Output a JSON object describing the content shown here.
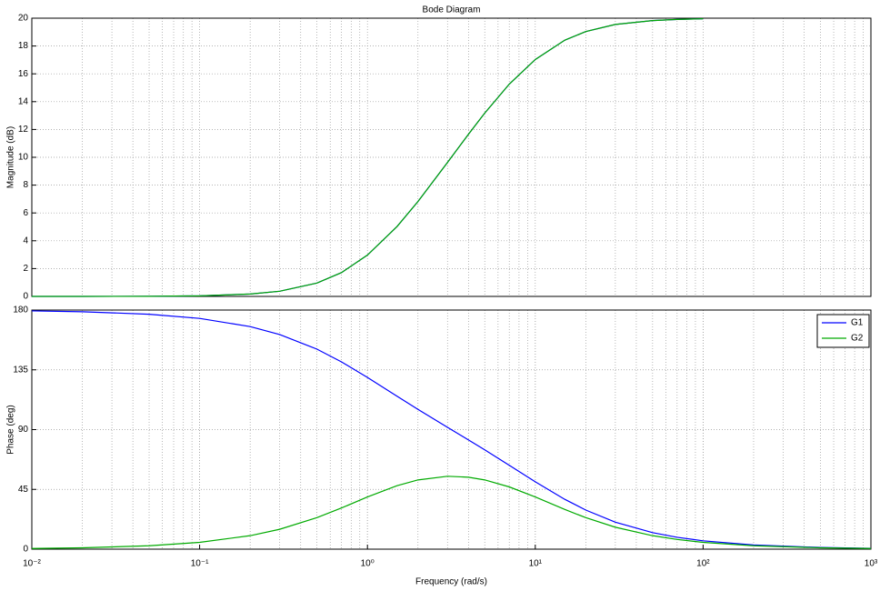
{
  "chart_data": [
    {
      "type": "line",
      "title": "Bode Diagram",
      "ylabel": "Magnitude (dB)",
      "x": [
        0.01,
        0.02,
        0.05,
        0.1,
        0.2,
        0.3,
        0.5,
        0.7,
        1,
        1.5,
        2,
        3,
        4,
        5,
        7,
        10,
        15,
        20,
        30,
        50,
        70,
        100
      ],
      "series": [
        {
          "color": "#0000ff",
          "values": [
            0,
            0,
            0.01,
            0.04,
            0.17,
            0.37,
            0.96,
            1.71,
            2.97,
            5.02,
            6.82,
            9.63,
            11.66,
            13.18,
            15.26,
            17.03,
            18.42,
            19.04,
            19.55,
            19.83,
            19.91,
            19.96
          ]
        },
        {
          "color": "#00aa00",
          "values": [
            0,
            0,
            0.01,
            0.04,
            0.17,
            0.37,
            0.96,
            1.71,
            2.97,
            5.02,
            6.82,
            9.63,
            11.66,
            13.18,
            15.26,
            17.03,
            18.42,
            19.04,
            19.55,
            19.83,
            19.91,
            19.96
          ]
        }
      ],
      "xscale": "log",
      "xlim": [
        0.01,
        1000
      ],
      "ylim": [
        0,
        20
      ],
      "yticks": [
        0,
        2,
        4,
        6,
        8,
        10,
        12,
        14,
        16,
        18,
        20
      ],
      "grid": true,
      "minor_grid": true
    },
    {
      "type": "line",
      "ylabel": "Phase (deg)",
      "xlabel": "Frequency  (rad/s)",
      "x": [
        0.01,
        0.02,
        0.05,
        0.1,
        0.2,
        0.3,
        0.5,
        0.7,
        1,
        1.5,
        2,
        3,
        4,
        5,
        7,
        10,
        15,
        20,
        30,
        50,
        70,
        100,
        200,
        500,
        1000
      ],
      "series": [
        {
          "name": "G1",
          "color": "#0000ff",
          "values": [
            179.37,
            178.74,
            176.85,
            173.72,
            167.54,
            161.58,
            150.57,
            141.01,
            129.29,
            115.16,
            105.26,
            91.73,
            82.24,
            74.74,
            63.14,
            50.71,
            37.5,
            29.43,
            20.34,
            12.46,
            8.95,
            6.28,
            3.15,
            1.26,
            0.63
          ]
        },
        {
          "name": "G2",
          "color": "#00aa00",
          "values": [
            0.52,
            1.03,
            2.58,
            5.14,
            10.16,
            14.98,
            23.71,
            30.99,
            39.29,
            47.78,
            52.12,
            54.87,
            54.16,
            52.12,
            46.88,
            39.29,
            29.88,
            23.71,
            16.52,
            10.16,
            7.31,
            5.14,
            2.57,
            1.03,
            0.51
          ]
        }
      ],
      "xscale": "log",
      "xlim": [
        0.01,
        1000
      ],
      "ylim": [
        0,
        180
      ],
      "xticks": [
        {
          "value": 0.01,
          "label": "10⁻²"
        },
        {
          "value": 0.1,
          "label": "10⁻¹"
        },
        {
          "value": 1,
          "label": "10⁰"
        },
        {
          "value": 10,
          "label": "10¹"
        },
        {
          "value": 100,
          "label": "10²"
        },
        {
          "value": 1000,
          "label": "10³"
        }
      ],
      "yticks": [
        0,
        45,
        90,
        135,
        180
      ],
      "grid": true,
      "minor_grid": true,
      "legend": "upper right"
    }
  ]
}
